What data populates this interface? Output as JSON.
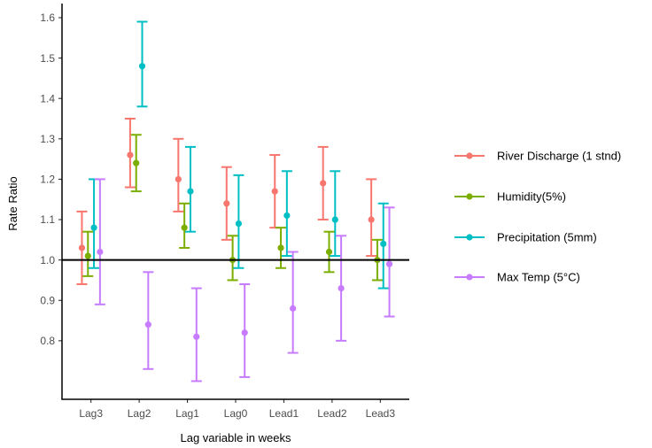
{
  "chart_data": {
    "type": "scatter",
    "xlabel": "Lag variable in weeks",
    "ylabel": "Rate Ratio",
    "categories": [
      "Lag3",
      "Lag2",
      "Lag1",
      "Lag0",
      "Lead1",
      "Lead2",
      "Lead3"
    ],
    "yticks": [
      "0.8",
      "0.9",
      "1.0",
      "1.1",
      "1.2",
      "1.3",
      "1.4",
      "1.5",
      "1.6"
    ],
    "ylim": [
      0.655,
      1.635
    ],
    "reference_line": 1.0,
    "grid": false,
    "legend": "right",
    "series": [
      {
        "name": "River Discharge (1 stnd)",
        "color": "#F8766D",
        "values": [
          1.03,
          1.26,
          1.2,
          1.14,
          1.17,
          1.19,
          1.1
        ],
        "lower": [
          0.94,
          1.18,
          1.12,
          1.05,
          1.08,
          1.1,
          1.01
        ],
        "upper": [
          1.12,
          1.35,
          1.3,
          1.23,
          1.26,
          1.28,
          1.2
        ]
      },
      {
        "name": "Humidity(5%)",
        "color": "#7CAE00",
        "values": [
          1.01,
          1.24,
          1.08,
          1.0,
          1.03,
          1.02,
          1.0
        ],
        "lower": [
          0.96,
          1.17,
          1.03,
          0.95,
          0.98,
          0.97,
          0.95
        ],
        "upper": [
          1.07,
          1.31,
          1.14,
          1.06,
          1.08,
          1.07,
          1.05
        ]
      },
      {
        "name": "Precipitation (5mm)",
        "color": "#00BFC4",
        "values": [
          1.08,
          1.48,
          1.17,
          1.09,
          1.11,
          1.1,
          1.04
        ],
        "lower": [
          0.98,
          1.38,
          1.07,
          0.98,
          1.01,
          1.01,
          0.93
        ],
        "upper": [
          1.2,
          1.59,
          1.28,
          1.21,
          1.22,
          1.22,
          1.14
        ]
      },
      {
        "name": "Max Temp (5°C)",
        "color": "#C77CFF",
        "values": [
          1.02,
          0.84,
          0.81,
          0.82,
          0.88,
          0.93,
          0.99
        ],
        "lower": [
          0.89,
          0.73,
          0.7,
          0.71,
          0.77,
          0.8,
          0.86
        ],
        "upper": [
          1.2,
          0.97,
          0.93,
          0.94,
          1.02,
          1.06,
          1.13
        ]
      }
    ]
  }
}
